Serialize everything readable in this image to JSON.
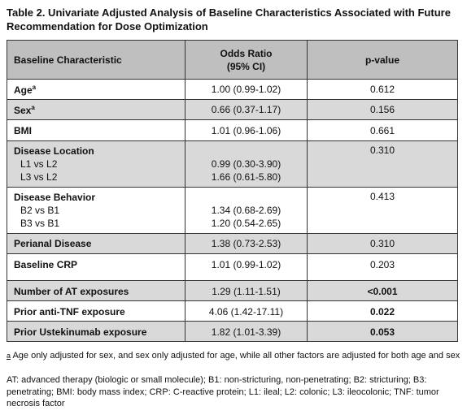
{
  "title": "Table 2. Univariate Adjusted Analysis of Baseline Characteristics Associated with Future Recommendation for Dose Optimization",
  "headers": {
    "characteristic": "Baseline Characteristic",
    "odds_ratio_line1": "Odds Ratio",
    "odds_ratio_line2": "(95% CI)",
    "pvalue": "p-value"
  },
  "rows": {
    "age": {
      "label": "Age",
      "sup": "a",
      "or": "1.00 (0.99-1.02)",
      "p": "0.612"
    },
    "sex": {
      "label": "Sex",
      "sup": "a",
      "or": "0.66 (0.37-1.17)",
      "p": "0.156"
    },
    "bmi": {
      "label": "BMI",
      "or": "1.01 (0.96-1.06)",
      "p": "0.661"
    },
    "location": {
      "label": "Disease Location",
      "p": "0.310",
      "sub1": "L1 vs L2",
      "or1": "0.99 (0.30-3.90)",
      "sub2": "L3 vs L2",
      "or2": "1.66 (0.61-5.80)"
    },
    "behavior": {
      "label": "Disease Behavior",
      "p": "0.413",
      "sub1": "B2 vs B1",
      "or1": "1.34 (0.68-2.69)",
      "sub2": "B3 vs B1",
      "or2": "1.20 (0.54-2.65)"
    },
    "perianal": {
      "label": "Perianal Disease",
      "or": "1.38 (0.73-2.53)",
      "p": "0.310"
    },
    "crp": {
      "label": "Baseline CRP",
      "or": "1.01 (0.99-1.02)",
      "p": "0.203"
    },
    "at_exposures": {
      "label": "Number of AT exposures",
      "or": "1.29 (1.11-1.51)",
      "p": "<0.001"
    },
    "anti_tnf": {
      "label": "Prior anti-TNF exposure",
      "or": "4.06 (1.42-17.11)",
      "p": "0.022"
    },
    "ustekinumab": {
      "label": "Prior Ustekinumab exposure",
      "or": "1.82 (1.01-3.39)",
      "p": "0.053"
    }
  },
  "footnotes": {
    "a_mark": "a",
    "a_text": " Age only adjusted for sex, and sex only adjusted for age, while all other factors are adjusted for both age and sex",
    "abbrev": "AT: advanced therapy (biologic or small molecule); B1: non-stricturing, non-penetrating; B2: stricturing; B3: penetrating; BMI: body mass index; CRP: C-reactive protein; L1: ileal; L2: colonic; L3: ileocolonic; TNF: tumor necrosis factor"
  }
}
